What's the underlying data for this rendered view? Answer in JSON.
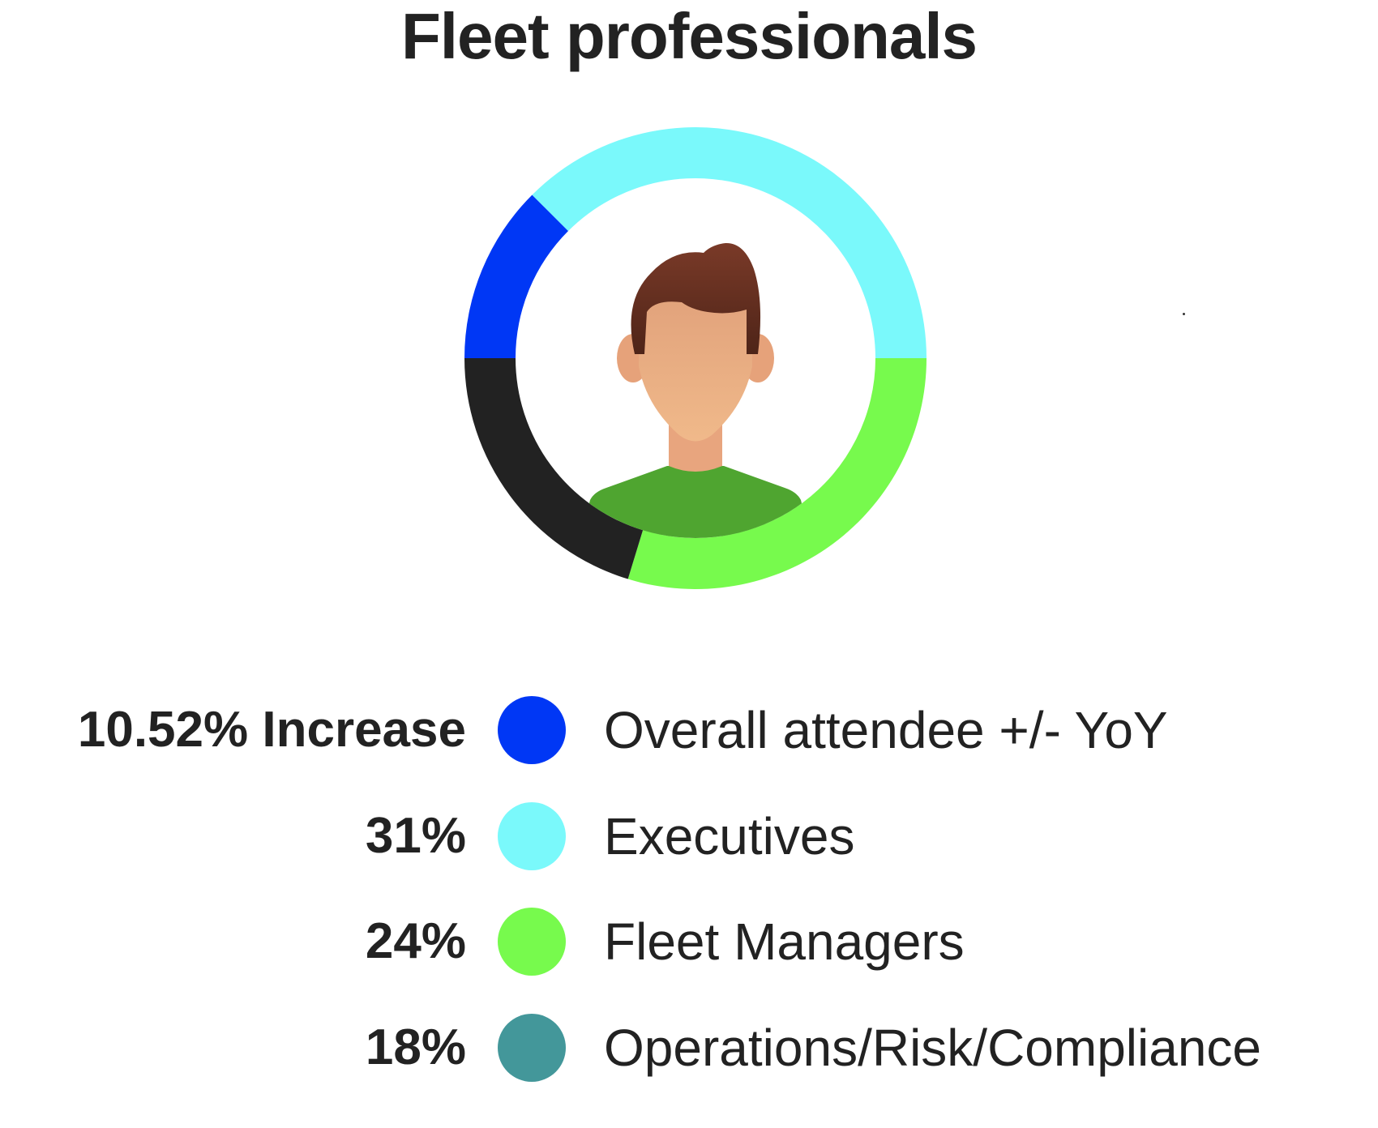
{
  "title": "Fleet professionals",
  "chart_data": {
    "type": "pie",
    "variant": "donut",
    "title": "Fleet professionals",
    "rings": [
      {
        "name": "Overall attendee +/- YoY",
        "color": "#0037F5",
        "value_deg": 45
      },
      {
        "name": "Executives",
        "color": "#7AF9FB",
        "value_deg": 135
      },
      {
        "name": "Fleet Managers",
        "color": "#77FA4D",
        "value_deg": 107
      },
      {
        "name": "Operations/Risk/Compliance",
        "color": "#222222",
        "value_deg": 73
      }
    ],
    "legend": [
      {
        "value": "10.52% Increase",
        "label": "Overall attendee +/- YoY",
        "color": "#0037F5"
      },
      {
        "value": "31%",
        "label": "Executives",
        "color": "#7AF9FB"
      },
      {
        "value": "24%",
        "label": "Fleet Managers",
        "color": "#77FA4D"
      },
      {
        "value": "18%",
        "label": "Operations/Risk/Compliance",
        "color": "#43979A"
      }
    ],
    "legend_placement": "bottom",
    "center_image": "person-avatar-icon"
  }
}
